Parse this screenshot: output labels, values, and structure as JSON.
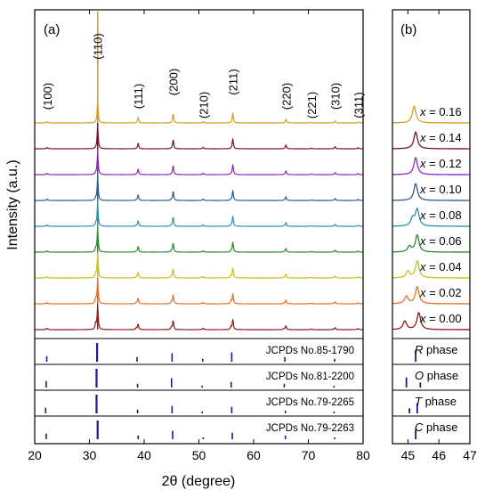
{
  "chart_data": {
    "type": "line",
    "ylabel": "Intensity (a.u.)",
    "xlabel": "2θ (degree)",
    "colors": {
      "x_0.00": "#8b1a1a",
      "x_0.02": "#e07028",
      "x_0.04": "#c8c020",
      "x_0.06": "#2a8a2a",
      "x_0.08": "#2e8fb0",
      "x_0.10": "#2c5c8c",
      "x_0.12": "#8a2ab0",
      "x_0.14": "#7a1030",
      "x_0.16": "#d4a020",
      "reference": "#1a1a8a"
    },
    "panels": [
      {
        "label": "(a)",
        "xlim": [
          20,
          80
        ],
        "xticks": [
          20,
          30,
          40,
          50,
          60,
          70,
          80
        ],
        "peak_labels": [
          {
            "text": "(100)",
            "x": 22.3
          },
          {
            "text": "(110)",
            "x": 31.5
          },
          {
            "text": "(111)",
            "x": 38.9
          },
          {
            "text": "(200)",
            "x": 45.3
          },
          {
            "text": "(210)",
            "x": 50.8
          },
          {
            "text": "(211)",
            "x": 56.2
          },
          {
            "text": "(220)",
            "x": 65.9
          },
          {
            "text": "(221)",
            "x": 70.6
          },
          {
            "text": "(310)",
            "x": 74.9
          },
          {
            "text": "(311)",
            "x": 79.1
          }
        ],
        "peaks": [
          {
            "x": 22.3,
            "h": 0.06
          },
          {
            "x": 31.5,
            "h": 1.0
          },
          {
            "x": 38.9,
            "h": 0.25
          },
          {
            "x": 45.3,
            "h": 0.4
          },
          {
            "x": 50.8,
            "h": 0.06
          },
          {
            "x": 56.2,
            "h": 0.45
          },
          {
            "x": 65.9,
            "h": 0.17
          },
          {
            "x": 70.6,
            "h": 0.03
          },
          {
            "x": 74.9,
            "h": 0.09
          },
          {
            "x": 79.1,
            "h": 0.05
          }
        ]
      },
      {
        "label": "(b)",
        "xlim": [
          44.5,
          47
        ],
        "xticks": [
          45,
          46,
          47
        ]
      }
    ],
    "series": [
      {
        "name": "x = 0.00",
        "x_label": "x",
        "value_label": " = 0.00",
        "color_key": "x_0.00",
        "split": 0.45,
        "b_peaks": [
          {
            "x": 44.9,
            "h": 0.45
          },
          {
            "x": 45.35,
            "h": 0.9
          }
        ]
      },
      {
        "name": "x = 0.02",
        "x_label": "x",
        "value_label": " = 0.02",
        "color_key": "x_0.02",
        "split": 0.38,
        "b_peaks": [
          {
            "x": 44.95,
            "h": 0.4
          },
          {
            "x": 45.3,
            "h": 0.9
          }
        ]
      },
      {
        "name": "x = 0.04",
        "x_label": "x",
        "value_label": " = 0.04",
        "color_key": "x_0.04",
        "split": 0.32,
        "b_peaks": [
          {
            "x": 45.0,
            "h": 0.35
          },
          {
            "x": 45.3,
            "h": 0.9
          }
        ]
      },
      {
        "name": "x = 0.06",
        "x_label": "x",
        "value_label": " = 0.06",
        "color_key": "x_0.06",
        "split": 0.25,
        "b_peaks": [
          {
            "x": 45.05,
            "h": 0.3
          },
          {
            "x": 45.3,
            "h": 0.9
          }
        ]
      },
      {
        "name": "x = 0.08",
        "x_label": "x",
        "value_label": " = 0.08",
        "color_key": "x_0.08",
        "split": 0.2,
        "b_peaks": [
          {
            "x": 45.15,
            "h": 0.4
          },
          {
            "x": 45.3,
            "h": 0.9
          }
        ]
      },
      {
        "name": "x = 0.10",
        "x_label": "x",
        "value_label": " = 0.10",
        "color_key": "x_0.10",
        "split": 0.15,
        "b_peaks": [
          {
            "x": 45.25,
            "h": 0.9
          }
        ]
      },
      {
        "name": "x = 0.12",
        "x_label": "x",
        "value_label": " = 0.12",
        "color_key": "x_0.12",
        "split": 0.1,
        "b_peaks": [
          {
            "x": 45.25,
            "h": 0.9
          }
        ]
      },
      {
        "name": "x = 0.14",
        "x_label": "x",
        "value_label": " = 0.14",
        "color_key": "x_0.14",
        "split": 0.05,
        "b_peaks": [
          {
            "x": 45.25,
            "h": 0.9
          }
        ]
      },
      {
        "name": "x = 0.16",
        "x_label": "x",
        "value_label": " = 0.16",
        "color_key": "x_0.16",
        "split": 0.0,
        "b_peaks": [
          {
            "x": 45.2,
            "h": 0.9
          }
        ]
      }
    ],
    "references": [
      {
        "name": "JCPDs No.85-1790",
        "phase_letter": "R",
        "phase_word": " phase",
        "a_peaks": [
          {
            "x": 22.2,
            "h": 0.3
          },
          {
            "x": 31.4,
            "h": 1.0
          },
          {
            "x": 38.7,
            "h": 0.25
          },
          {
            "x": 45.1,
            "h": 0.45
          },
          {
            "x": 50.7,
            "h": 0.15
          },
          {
            "x": 56.0,
            "h": 0.5
          },
          {
            "x": 65.7,
            "h": 0.25
          },
          {
            "x": 74.8,
            "h": 0.15
          }
        ],
        "b_peaks": [
          {
            "x": 45.25,
            "h": 0.7
          }
        ]
      },
      {
        "name": "JCPDs No.81-2200",
        "phase_letter": "O",
        "phase_word": " phase",
        "a_peaks": [
          {
            "x": 22.1,
            "h": 0.35
          },
          {
            "x": 31.3,
            "h": 1.0
          },
          {
            "x": 38.8,
            "h": 0.2
          },
          {
            "x": 45.0,
            "h": 0.5
          },
          {
            "x": 50.6,
            "h": 0.1
          },
          {
            "x": 55.9,
            "h": 0.3
          },
          {
            "x": 65.6,
            "h": 0.2
          },
          {
            "x": 74.7,
            "h": 0.1
          }
        ],
        "b_peaks": [
          {
            "x": 44.95,
            "h": 0.6
          },
          {
            "x": 45.4,
            "h": 0.3
          }
        ]
      },
      {
        "name": "JCPDs No.79-2265",
        "phase_letter": "T",
        "phase_word": " phase",
        "a_peaks": [
          {
            "x": 22.0,
            "h": 0.3
          },
          {
            "x": 31.3,
            "h": 1.0
          },
          {
            "x": 38.8,
            "h": 0.2
          },
          {
            "x": 45.1,
            "h": 0.4
          },
          {
            "x": 50.6,
            "h": 0.1
          },
          {
            "x": 56.0,
            "h": 0.35
          },
          {
            "x": 65.8,
            "h": 0.15
          },
          {
            "x": 74.7,
            "h": 0.1
          }
        ],
        "b_peaks": [
          {
            "x": 45.05,
            "h": 0.3
          },
          {
            "x": 45.3,
            "h": 0.6
          }
        ]
      },
      {
        "name": "JCPDs No.79-2263",
        "phase_letter": "C",
        "phase_word": " phase",
        "a_peaks": [
          {
            "x": 22.1,
            "h": 0.3
          },
          {
            "x": 31.5,
            "h": 1.0
          },
          {
            "x": 38.9,
            "h": 0.2
          },
          {
            "x": 45.2,
            "h": 0.45
          },
          {
            "x": 50.8,
            "h": 0.1
          },
          {
            "x": 56.1,
            "h": 0.35
          },
          {
            "x": 65.8,
            "h": 0.2
          },
          {
            "x": 74.8,
            "h": 0.1
          }
        ],
        "b_peaks": [
          {
            "x": 45.25,
            "h": 0.6
          }
        ]
      }
    ]
  }
}
